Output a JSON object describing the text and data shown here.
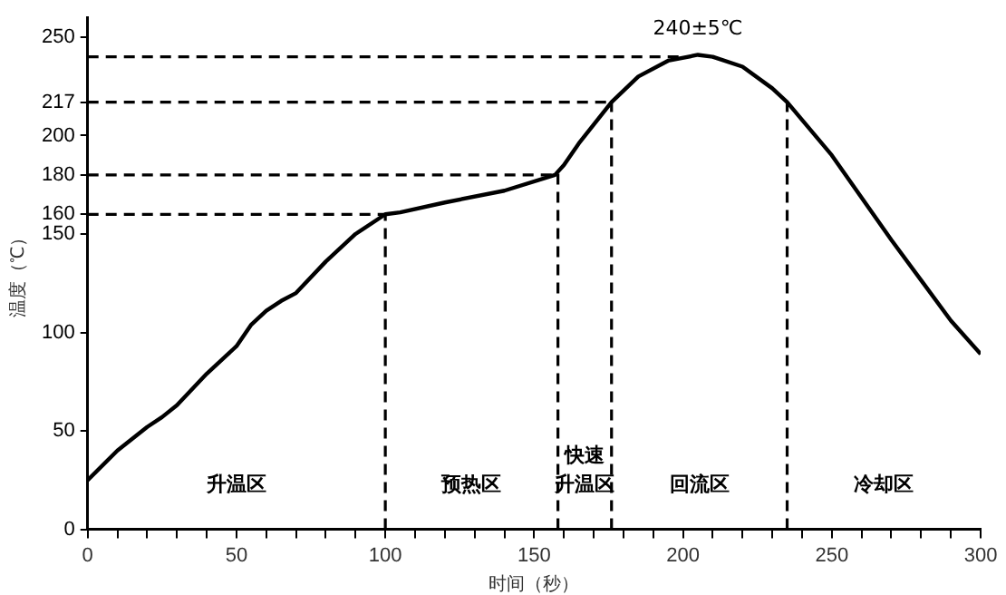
{
  "chart_data": {
    "type": "line",
    "xlabel": "时间（秒）",
    "ylabel": "温度（℃）",
    "x": [
      0,
      10,
      20,
      25,
      30,
      40,
      50,
      55,
      60,
      65,
      70,
      80,
      90,
      100,
      105,
      120,
      140,
      157,
      160,
      165,
      176,
      185,
      195,
      205,
      210,
      220,
      230,
      235,
      250,
      270,
      290,
      300
    ],
    "series": [
      {
        "color": "#000000",
        "values": [
          25,
          40,
          52,
          57,
          63,
          79,
          93,
          104,
          111,
          116,
          120,
          136,
          150,
          160,
          161,
          166,
          172,
          180,
          185,
          196,
          217,
          230,
          238,
          241,
          240,
          235,
          224,
          217,
          190,
          147,
          106,
          89
        ]
      }
    ],
    "xlim": [
      0,
      300
    ],
    "xticks": [
      0,
      {
        "value": 10,
        "label": null
      },
      {
        "value": 20,
        "label": null
      },
      {
        "value": 30,
        "label": null
      },
      {
        "value": 40,
        "label": null
      },
      50,
      {
        "value": 60,
        "label": null
      },
      {
        "value": 70,
        "label": null
      },
      {
        "value": 80,
        "label": null
      },
      {
        "value": 90,
        "label": null
      },
      100,
      {
        "value": 110,
        "label": null
      },
      {
        "value": 120,
        "label": null
      },
      {
        "value": 130,
        "label": null
      },
      {
        "value": 140,
        "label": null
      },
      150,
      {
        "value": 160,
        "label": null
      },
      {
        "value": 170,
        "label": null
      },
      {
        "value": 180,
        "label": null
      },
      {
        "value": 190,
        "label": null
      },
      200,
      {
        "value": 210,
        "label": null
      },
      {
        "value": 220,
        "label": null
      },
      {
        "value": 230,
        "label": null
      },
      {
        "value": 240,
        "label": null
      },
      250,
      {
        "value": 260,
        "label": null
      },
      {
        "value": 270,
        "label": null
      },
      {
        "value": 280,
        "label": null
      },
      {
        "value": 290,
        "label": null
      },
      300
    ],
    "ylim": [
      0,
      260
    ],
    "yticks": [
      0,
      50,
      100,
      150,
      160,
      180,
      200,
      217,
      250
    ],
    "ref_lines": [
      {
        "axis": "y",
        "value": 240,
        "line_style": "dashed",
        "color": "#000000"
      },
      {
        "axis": "y",
        "value": 217,
        "line_style": "dashed",
        "color": "#000000"
      },
      {
        "axis": "y",
        "value": 180,
        "line_style": "dashed",
        "color": "#000000"
      },
      {
        "axis": "y",
        "value": 160,
        "line_style": "dashed",
        "color": "#000000"
      },
      {
        "axis": "x",
        "value": 100,
        "line_style": "dashed",
        "color": "#000000"
      },
      {
        "axis": "x",
        "value": 158,
        "line_style": "dashed",
        "color": "#000000"
      },
      {
        "axis": "x",
        "value": 176,
        "line_style": "dashed",
        "color": "#000000"
      },
      {
        "axis": "x",
        "value": 235,
        "line_style": "dashed",
        "color": "#000000"
      }
    ],
    "annotations": [
      "240±5℃",
      "升温区",
      "预热区",
      "快速升温区",
      "回流区",
      "冷却区"
    ],
    "grid": false,
    "legend": false,
    "marker": "none",
    "line_style": "solid"
  }
}
